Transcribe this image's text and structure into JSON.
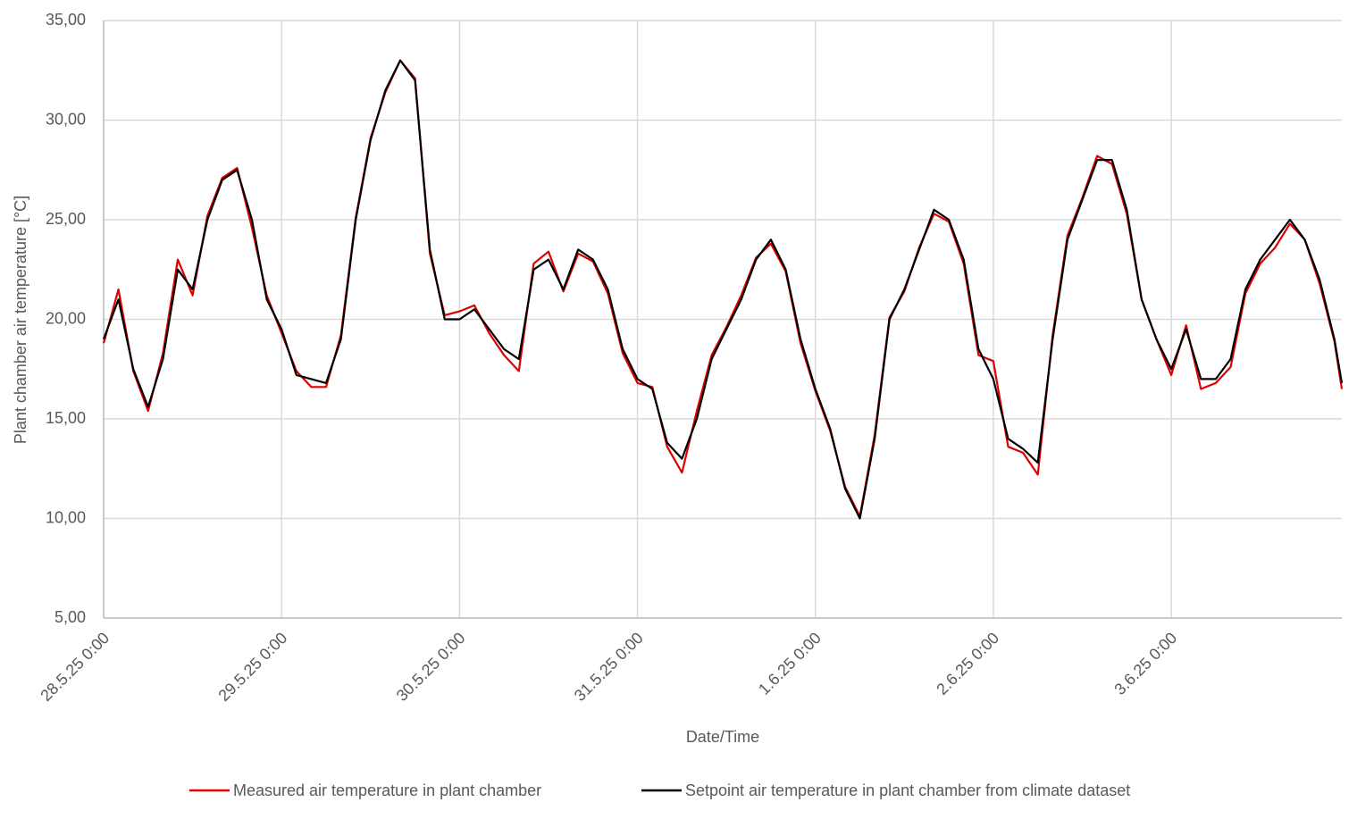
{
  "chart_data": {
    "type": "line",
    "y_label": "Plant chamber air temperature [°C]",
    "x_label": "Date/Time",
    "x": [
      "28.5.25 0:00",
      "28.5.25 2:00",
      "28.5.25 4:00",
      "28.5.25 6:00",
      "28.5.25 8:00",
      "28.5.25 10:00",
      "28.5.25 12:00",
      "28.5.25 14:00",
      "28.5.25 16:00",
      "28.5.25 18:00",
      "28.5.25 20:00",
      "28.5.25 22:00",
      "29.5.25 0:00",
      "29.5.25 2:00",
      "29.5.25 4:00",
      "29.5.25 6:00",
      "29.5.25 8:00",
      "29.5.25 10:00",
      "29.5.25 12:00",
      "29.5.25 14:00",
      "29.5.25 16:00",
      "29.5.25 18:00",
      "29.5.25 20:00",
      "29.5.25 22:00",
      "30.5.25 0:00",
      "30.5.25 2:00",
      "30.5.25 4:00",
      "30.5.25 6:00",
      "30.5.25 8:00",
      "30.5.25 10:00",
      "30.5.25 12:00",
      "30.5.25 14:00",
      "30.5.25 16:00",
      "30.5.25 18:00",
      "30.5.25 20:00",
      "30.5.25 22:00",
      "31.5.25 0:00",
      "31.5.25 2:00",
      "31.5.25 4:00",
      "31.5.25 6:00",
      "31.5.25 8:00",
      "31.5.25 10:00",
      "31.5.25 12:00",
      "31.5.25 14:00",
      "31.5.25 16:00",
      "31.5.25 18:00",
      "31.5.25 20:00",
      "31.5.25 22:00",
      "1.6.25 0:00",
      "1.6.25 2:00",
      "1.6.25 4:00",
      "1.6.25 6:00",
      "1.6.25 8:00",
      "1.6.25 10:00",
      "1.6.25 12:00",
      "1.6.25 14:00",
      "1.6.25 16:00",
      "1.6.25 18:00",
      "1.6.25 20:00",
      "1.6.25 22:00",
      "2.6.25 0:00",
      "2.6.25 2:00",
      "2.6.25 4:00",
      "2.6.25 6:00",
      "2.6.25 8:00",
      "2.6.25 10:00",
      "2.6.25 12:00",
      "2.6.25 14:00",
      "2.6.25 16:00",
      "2.6.25 18:00",
      "2.6.25 20:00",
      "2.6.25 22:00",
      "3.6.25 0:00",
      "3.6.25 2:00",
      "3.6.25 4:00",
      "3.6.25 6:00",
      "3.6.25 8:00",
      "3.6.25 10:00",
      "3.6.25 12:00",
      "3.6.25 14:00",
      "3.6.25 16:00",
      "3.6.25 18:00",
      "3.6.25 20:00",
      "3.6.25 22:00",
      "3.6.25 23:00"
    ],
    "series": [
      {
        "name": "Measured air temperature in plant chamber",
        "color": "#e00000",
        "values": [
          18.8,
          21.5,
          17.4,
          15.4,
          18.3,
          23.0,
          21.2,
          25.2,
          27.1,
          27.6,
          24.6,
          21.2,
          19.3,
          17.4,
          16.6,
          16.6,
          19.2,
          25.1,
          29.1,
          31.4,
          33.0,
          32.1,
          23.3,
          20.2,
          20.4,
          20.7,
          19.3,
          18.2,
          17.4,
          22.8,
          23.4,
          21.4,
          23.3,
          22.9,
          21.3,
          18.3,
          16.8,
          16.6,
          13.6,
          12.3,
          15.4,
          18.2,
          19.6,
          21.2,
          23.1,
          23.8,
          22.4,
          18.8,
          16.4,
          14.4,
          11.6,
          10.1,
          14.2,
          20.1,
          21.4,
          23.6,
          25.3,
          24.9,
          22.8,
          18.2,
          17.9,
          13.6,
          13.3,
          12.2,
          19.2,
          24.2,
          26.1,
          28.2,
          27.8,
          25.3,
          21.0,
          19.0,
          17.2,
          19.7,
          16.5,
          16.8,
          17.6,
          21.3,
          22.8,
          23.6,
          24.8,
          24.0,
          21.8,
          18.9,
          16.5
        ]
      },
      {
        "name": "Setpoint air temperature in plant chamber from climate dataset",
        "color": "#000000",
        "values": [
          19.0,
          21.0,
          17.5,
          15.6,
          18.0,
          22.5,
          21.5,
          25.0,
          27.0,
          27.5,
          25.0,
          21.0,
          19.5,
          17.2,
          17.0,
          16.8,
          19.0,
          25.0,
          29.0,
          31.5,
          33.0,
          32.0,
          23.5,
          20.0,
          20.0,
          20.5,
          19.5,
          18.5,
          18.0,
          22.5,
          23.0,
          21.5,
          23.5,
          23.0,
          21.5,
          18.5,
          17.0,
          16.5,
          13.8,
          13.0,
          15.0,
          18.0,
          19.5,
          21.0,
          23.0,
          24.0,
          22.5,
          19.0,
          16.5,
          14.5,
          11.5,
          10.0,
          14.0,
          20.0,
          21.5,
          23.5,
          25.5,
          25.0,
          23.0,
          18.5,
          17.0,
          14.0,
          13.5,
          12.8,
          19.0,
          24.0,
          26.0,
          28.0,
          28.0,
          25.5,
          21.0,
          19.0,
          17.5,
          19.5,
          17.0,
          17.0,
          18.0,
          21.5,
          23.0,
          24.0,
          25.0,
          24.0,
          22.0,
          19.0,
          16.8
        ]
      }
    ],
    "xlim": [
      "28.5.25 0:00",
      "3.6.25 23:00"
    ],
    "xticks": [
      "28.5.25 0:00",
      "29.5.25 0:00",
      "30.5.25 0:00",
      "31.5.25 0:00",
      "1.6.25 0:00",
      "2.6.25 0:00",
      "3.6.25 0:00"
    ],
    "ylim": [
      5,
      35
    ],
    "yticks": [
      {
        "value": 5,
        "label": "5,00"
      },
      {
        "value": 10,
        "label": "10,00"
      },
      {
        "value": 15,
        "label": "15,00"
      },
      {
        "value": 20,
        "label": "20,00"
      },
      {
        "value": 25,
        "label": "25,00"
      },
      {
        "value": 30,
        "label": "30,00"
      },
      {
        "value": 35,
        "label": "35,00"
      }
    ],
    "grid": true,
    "legend": "bottom"
  }
}
